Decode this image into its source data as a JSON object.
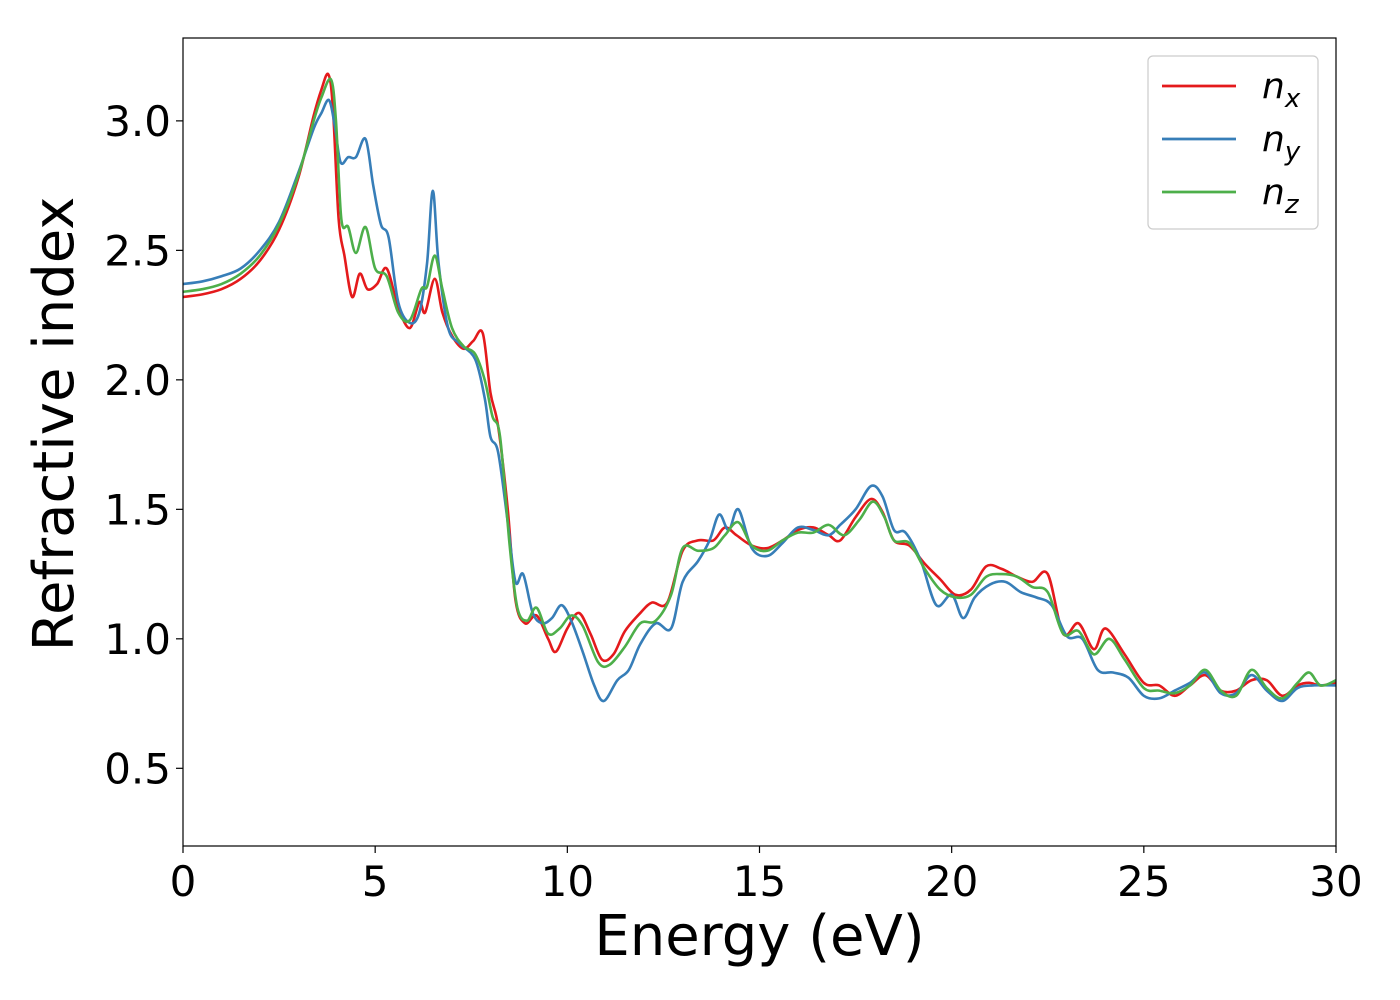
{
  "chart_data": {
    "type": "line",
    "title": "",
    "xlabel": "Energy (eV)",
    "ylabel": "Refractive index",
    "xlim": [
      0,
      30
    ],
    "ylim": [
      0.2,
      3.32
    ],
    "xticks": [
      0,
      5,
      10,
      15,
      20,
      25,
      30
    ],
    "xtick_labels": [
      "0",
      "5",
      "10",
      "15",
      "20",
      "25",
      "30"
    ],
    "yticks": [
      0.5,
      1.0,
      1.5,
      2.0,
      2.5,
      3.0
    ],
    "ytick_labels": [
      "0.5",
      "1.0",
      "1.5",
      "2.0",
      "2.5",
      "3.0"
    ],
    "grid": false,
    "legend_position": "top-right",
    "series": [
      {
        "name": "n_x",
        "label_base": "n",
        "label_sub": "x",
        "color": "#e41a1c",
        "points": [
          [
            0,
            2.32
          ],
          [
            0.5,
            2.33
          ],
          [
            1,
            2.35
          ],
          [
            1.5,
            2.39
          ],
          [
            2,
            2.46
          ],
          [
            2.5,
            2.58
          ],
          [
            3,
            2.78
          ],
          [
            3.4,
            3.02
          ],
          [
            3.6,
            3.12
          ],
          [
            3.78,
            3.18
          ],
          [
            3.9,
            3.05
          ],
          [
            4.05,
            2.62
          ],
          [
            4.2,
            2.48
          ],
          [
            4.4,
            2.32
          ],
          [
            4.6,
            2.41
          ],
          [
            4.8,
            2.35
          ],
          [
            5.05,
            2.37
          ],
          [
            5.3,
            2.43
          ],
          [
            5.6,
            2.28
          ],
          [
            5.9,
            2.2
          ],
          [
            6.15,
            2.3
          ],
          [
            6.3,
            2.26
          ],
          [
            6.55,
            2.39
          ],
          [
            6.75,
            2.26
          ],
          [
            7.0,
            2.17
          ],
          [
            7.3,
            2.12
          ],
          [
            7.55,
            2.15
          ],
          [
            7.8,
            2.18
          ],
          [
            8.0,
            1.95
          ],
          [
            8.2,
            1.82
          ],
          [
            8.45,
            1.5
          ],
          [
            8.65,
            1.15
          ],
          [
            8.9,
            1.06
          ],
          [
            9.2,
            1.09
          ],
          [
            9.5,
            1.0
          ],
          [
            9.7,
            0.95
          ],
          [
            10.0,
            1.04
          ],
          [
            10.3,
            1.1
          ],
          [
            10.6,
            1.02
          ],
          [
            10.9,
            0.92
          ],
          [
            11.2,
            0.94
          ],
          [
            11.5,
            1.03
          ],
          [
            11.9,
            1.1
          ],
          [
            12.2,
            1.14
          ],
          [
            12.6,
            1.14
          ],
          [
            13.0,
            1.34
          ],
          [
            13.4,
            1.38
          ],
          [
            13.8,
            1.38
          ],
          [
            14.1,
            1.43
          ],
          [
            14.4,
            1.4
          ],
          [
            14.8,
            1.36
          ],
          [
            15.2,
            1.35
          ],
          [
            15.6,
            1.38
          ],
          [
            16.0,
            1.42
          ],
          [
            16.4,
            1.43
          ],
          [
            16.8,
            1.4
          ],
          [
            17.1,
            1.38
          ],
          [
            17.5,
            1.47
          ],
          [
            17.9,
            1.54
          ],
          [
            18.2,
            1.49
          ],
          [
            18.5,
            1.38
          ],
          [
            18.9,
            1.36
          ],
          [
            19.3,
            1.29
          ],
          [
            19.7,
            1.23
          ],
          [
            20.1,
            1.17
          ],
          [
            20.5,
            1.19
          ],
          [
            20.9,
            1.28
          ],
          [
            21.3,
            1.27
          ],
          [
            21.7,
            1.24
          ],
          [
            22.1,
            1.22
          ],
          [
            22.5,
            1.25
          ],
          [
            22.9,
            1.02
          ],
          [
            23.3,
            1.06
          ],
          [
            23.7,
            0.96
          ],
          [
            24.0,
            1.04
          ],
          [
            24.5,
            0.94
          ],
          [
            25.0,
            0.83
          ],
          [
            25.4,
            0.82
          ],
          [
            25.8,
            0.78
          ],
          [
            26.2,
            0.82
          ],
          [
            26.6,
            0.86
          ],
          [
            27.0,
            0.8
          ],
          [
            27.4,
            0.8
          ],
          [
            27.8,
            0.84
          ],
          [
            28.2,
            0.84
          ],
          [
            28.6,
            0.78
          ],
          [
            29.0,
            0.82
          ],
          [
            29.3,
            0.83
          ],
          [
            29.6,
            0.82
          ],
          [
            30.0,
            0.83
          ]
        ]
      },
      {
        "name": "n_y",
        "label_base": "n",
        "label_sub": "y",
        "color": "#377eb8",
        "points": [
          [
            0,
            2.37
          ],
          [
            0.5,
            2.38
          ],
          [
            1,
            2.4
          ],
          [
            1.5,
            2.43
          ],
          [
            2,
            2.5
          ],
          [
            2.5,
            2.61
          ],
          [
            3,
            2.8
          ],
          [
            3.4,
            2.97
          ],
          [
            3.6,
            3.03
          ],
          [
            3.8,
            3.08
          ],
          [
            3.95,
            2.98
          ],
          [
            4.1,
            2.84
          ],
          [
            4.3,
            2.86
          ],
          [
            4.5,
            2.86
          ],
          [
            4.75,
            2.93
          ],
          [
            4.95,
            2.75
          ],
          [
            5.15,
            2.6
          ],
          [
            5.35,
            2.55
          ],
          [
            5.6,
            2.3
          ],
          [
            5.9,
            2.22
          ],
          [
            6.15,
            2.26
          ],
          [
            6.35,
            2.45
          ],
          [
            6.5,
            2.73
          ],
          [
            6.65,
            2.45
          ],
          [
            6.9,
            2.2
          ],
          [
            7.2,
            2.14
          ],
          [
            7.6,
            2.08
          ],
          [
            7.85,
            1.93
          ],
          [
            8.0,
            1.78
          ],
          [
            8.2,
            1.72
          ],
          [
            8.45,
            1.45
          ],
          [
            8.65,
            1.22
          ],
          [
            8.85,
            1.25
          ],
          [
            9.1,
            1.1
          ],
          [
            9.35,
            1.06
          ],
          [
            9.6,
            1.08
          ],
          [
            9.85,
            1.13
          ],
          [
            10.1,
            1.07
          ],
          [
            10.4,
            0.95
          ],
          [
            10.7,
            0.82
          ],
          [
            10.95,
            0.76
          ],
          [
            11.3,
            0.84
          ],
          [
            11.6,
            0.88
          ],
          [
            11.9,
            0.98
          ],
          [
            12.3,
            1.06
          ],
          [
            12.7,
            1.04
          ],
          [
            13.0,
            1.22
          ],
          [
            13.4,
            1.3
          ],
          [
            13.7,
            1.38
          ],
          [
            13.95,
            1.48
          ],
          [
            14.2,
            1.42
          ],
          [
            14.45,
            1.5
          ],
          [
            14.8,
            1.35
          ],
          [
            15.2,
            1.32
          ],
          [
            15.6,
            1.37
          ],
          [
            16.0,
            1.43
          ],
          [
            16.4,
            1.42
          ],
          [
            16.8,
            1.4
          ],
          [
            17.1,
            1.44
          ],
          [
            17.5,
            1.5
          ],
          [
            17.9,
            1.59
          ],
          [
            18.2,
            1.55
          ],
          [
            18.5,
            1.42
          ],
          [
            18.8,
            1.41
          ],
          [
            19.2,
            1.3
          ],
          [
            19.6,
            1.13
          ],
          [
            20.0,
            1.17
          ],
          [
            20.3,
            1.08
          ],
          [
            20.6,
            1.16
          ],
          [
            21.0,
            1.21
          ],
          [
            21.4,
            1.22
          ],
          [
            21.8,
            1.18
          ],
          [
            22.2,
            1.16
          ],
          [
            22.6,
            1.13
          ],
          [
            23.0,
            1.01
          ],
          [
            23.4,
            1.0
          ],
          [
            23.8,
            0.88
          ],
          [
            24.2,
            0.87
          ],
          [
            24.6,
            0.85
          ],
          [
            25.0,
            0.78
          ],
          [
            25.4,
            0.77
          ],
          [
            25.8,
            0.8
          ],
          [
            26.2,
            0.83
          ],
          [
            26.6,
            0.87
          ],
          [
            27.0,
            0.79
          ],
          [
            27.4,
            0.79
          ],
          [
            27.8,
            0.86
          ],
          [
            28.2,
            0.8
          ],
          [
            28.6,
            0.76
          ],
          [
            29.0,
            0.81
          ],
          [
            29.4,
            0.82
          ],
          [
            30.0,
            0.82
          ]
        ]
      },
      {
        "name": "n_z",
        "label_base": "n",
        "label_sub": "z",
        "color": "#4daf4a",
        "points": [
          [
            0,
            2.34
          ],
          [
            0.5,
            2.35
          ],
          [
            1,
            2.37
          ],
          [
            1.5,
            2.41
          ],
          [
            2,
            2.48
          ],
          [
            2.5,
            2.6
          ],
          [
            3,
            2.79
          ],
          [
            3.4,
            3.0
          ],
          [
            3.6,
            3.09
          ],
          [
            3.85,
            3.16
          ],
          [
            3.98,
            3.0
          ],
          [
            4.12,
            2.62
          ],
          [
            4.3,
            2.59
          ],
          [
            4.5,
            2.49
          ],
          [
            4.75,
            2.59
          ],
          [
            5.0,
            2.43
          ],
          [
            5.3,
            2.4
          ],
          [
            5.6,
            2.26
          ],
          [
            5.9,
            2.23
          ],
          [
            6.2,
            2.35
          ],
          [
            6.35,
            2.36
          ],
          [
            6.55,
            2.48
          ],
          [
            6.75,
            2.35
          ],
          [
            7.0,
            2.2
          ],
          [
            7.3,
            2.13
          ],
          [
            7.6,
            2.1
          ],
          [
            7.85,
            2.0
          ],
          [
            8.05,
            1.86
          ],
          [
            8.25,
            1.78
          ],
          [
            8.5,
            1.36
          ],
          [
            8.7,
            1.12
          ],
          [
            8.95,
            1.07
          ],
          [
            9.2,
            1.12
          ],
          [
            9.5,
            1.02
          ],
          [
            9.8,
            1.04
          ],
          [
            10.1,
            1.09
          ],
          [
            10.4,
            1.05
          ],
          [
            10.8,
            0.91
          ],
          [
            11.1,
            0.9
          ],
          [
            11.5,
            0.97
          ],
          [
            11.9,
            1.06
          ],
          [
            12.3,
            1.07
          ],
          [
            12.7,
            1.17
          ],
          [
            13.0,
            1.35
          ],
          [
            13.4,
            1.34
          ],
          [
            13.8,
            1.35
          ],
          [
            14.1,
            1.4
          ],
          [
            14.45,
            1.45
          ],
          [
            14.8,
            1.36
          ],
          [
            15.2,
            1.34
          ],
          [
            15.6,
            1.38
          ],
          [
            16.0,
            1.41
          ],
          [
            16.4,
            1.41
          ],
          [
            16.8,
            1.44
          ],
          [
            17.2,
            1.4
          ],
          [
            17.6,
            1.46
          ],
          [
            17.95,
            1.53
          ],
          [
            18.25,
            1.47
          ],
          [
            18.5,
            1.38
          ],
          [
            18.9,
            1.37
          ],
          [
            19.3,
            1.27
          ],
          [
            19.7,
            1.19
          ],
          [
            20.1,
            1.16
          ],
          [
            20.5,
            1.17
          ],
          [
            20.9,
            1.24
          ],
          [
            21.3,
            1.25
          ],
          [
            21.7,
            1.24
          ],
          [
            22.1,
            1.2
          ],
          [
            22.5,
            1.18
          ],
          [
            22.9,
            1.02
          ],
          [
            23.3,
            1.03
          ],
          [
            23.7,
            0.94
          ],
          [
            24.1,
            1.0
          ],
          [
            24.5,
            0.92
          ],
          [
            25.0,
            0.81
          ],
          [
            25.4,
            0.8
          ],
          [
            25.8,
            0.79
          ],
          [
            26.2,
            0.82
          ],
          [
            26.6,
            0.88
          ],
          [
            27.0,
            0.8
          ],
          [
            27.4,
            0.78
          ],
          [
            27.8,
            0.88
          ],
          [
            28.2,
            0.81
          ],
          [
            28.6,
            0.77
          ],
          [
            29.0,
            0.83
          ],
          [
            29.3,
            0.87
          ],
          [
            29.6,
            0.82
          ],
          [
            30.0,
            0.84
          ]
        ]
      }
    ]
  }
}
